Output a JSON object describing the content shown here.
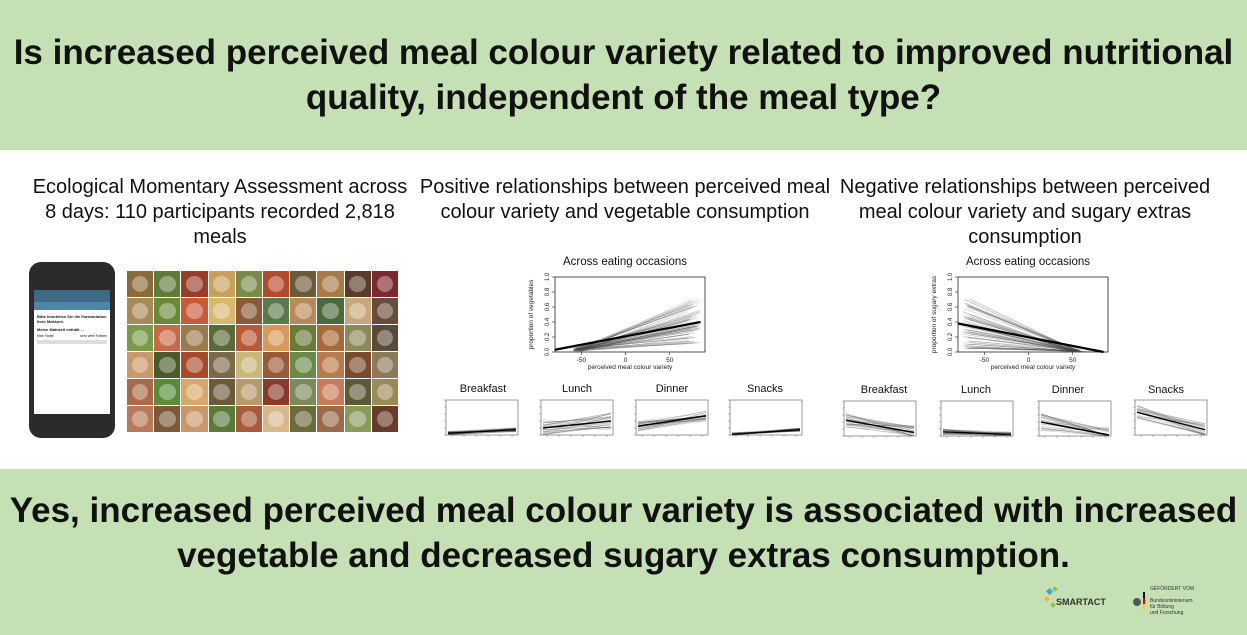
{
  "header": {
    "question": "Is increased perceived meal colour variety related to improved nutritional quality, independent of the meal type?"
  },
  "columns": {
    "ema": {
      "title": "Ecological Momentary Assessment across 8 days: 110 participants recorded 2,818 meals"
    },
    "vegetables": {
      "title": "Positive relationships between perceived meal colour variety and vegetable consumption"
    },
    "sugary": {
      "title": "Negative relationships between perceived meal colour variety and sugary extras consumption"
    }
  },
  "phone": {
    "line1": "Bitte beurteilen Sie die Farbvariation",
    "line2": "Ihrer Mahlzeit.",
    "line3": "Meine Mahlzeit enthält ...",
    "scale_left": "eine Farbe",
    "scale_right": "sehr viele Farben"
  },
  "chart_data": [
    {
      "type": "line",
      "title": "Across eating occasions",
      "xlabel": "perceived meal colour variety",
      "ylabel": "proportion of vegetables",
      "xticks": [
        "-50",
        "0",
        "50"
      ],
      "yticks": [
        "0.0",
        "0.2",
        "0.4",
        "0.6",
        "0.8",
        "1.0"
      ],
      "xlim": [
        -80,
        90
      ],
      "ylim": [
        0,
        1
      ],
      "series": [
        {
          "values": [
            [
              -80,
              0.03
            ],
            [
              85,
              0.4
            ]
          ]
        }
      ],
      "trend": "positive"
    },
    {
      "type": "line",
      "title": "Across eating occasions",
      "xlabel": "perceived meal colour variety",
      "ylabel": "proportion of sugary extras",
      "xticks": [
        "-50",
        "0",
        "50"
      ],
      "yticks": [
        "0.0",
        "0.2",
        "0.4",
        "0.6",
        "0.8",
        "1.0"
      ],
      "xlim": [
        -80,
        90
      ],
      "ylim": [
        0,
        1
      ],
      "series": [
        {
          "values": [
            [
              -80,
              0.38
            ],
            [
              85,
              0.0
            ]
          ]
        }
      ],
      "trend": "negative"
    }
  ],
  "mini_plots": {
    "vegetables": [
      {
        "label": "Breakfast",
        "start": 0.05,
        "end": 0.15,
        "spread": 0.06
      },
      {
        "label": "Lunch",
        "start": 0.2,
        "end": 0.4,
        "spread": 0.25
      },
      {
        "label": "Dinner",
        "start": 0.25,
        "end": 0.55,
        "spread": 0.15
      },
      {
        "label": "Snacks",
        "start": 0.02,
        "end": 0.15,
        "spread": 0.05
      }
    ],
    "sugary": [
      {
        "label": "Breakfast",
        "start": 0.45,
        "end": 0.1,
        "spread": 0.2
      },
      {
        "label": "Lunch",
        "start": 0.12,
        "end": 0.04,
        "spread": 0.08
      },
      {
        "label": "Dinner",
        "start": 0.4,
        "end": 0.03,
        "spread": 0.25
      },
      {
        "label": "Snacks",
        "start": 0.65,
        "end": 0.15,
        "spread": 0.2
      }
    ]
  },
  "footer": {
    "answer": "Yes, increased perceived meal colour variety is associated with increased vegetable and decreased sugary extras consumption."
  },
  "logos": {
    "smartact": "SMARTACT",
    "bmbf_funded": "GEFÖRDERT VOM",
    "bmbf_line1": "Bundesministerium",
    "bmbf_line2": "für Bildung",
    "bmbf_line3": "und Forschung"
  },
  "mosaic_colors": [
    "#8a6a3a",
    "#5f7a3a",
    "#9b3b2a",
    "#c7a25a",
    "#7a8a4a",
    "#b34a2a",
    "#6b5a3a",
    "#a87a4a",
    "#5a3a2a",
    "#7a2a2a",
    "#a88a5a",
    "#6a8a3a",
    "#c85a3a",
    "#d8b86a",
    "#8a5a3a",
    "#5a7a4a",
    "#b88a5a",
    "#4a6a3a",
    "#c8a87a",
    "#6a4a3a",
    "#7a9a4a",
    "#c86a4a",
    "#9a7a4a",
    "#5a6a3a",
    "#b85a3a",
    "#d89a5a",
    "#6a7a3a",
    "#a86a3a",
    "#8a8a5a",
    "#5a4a3a",
    "#c89a6a",
    "#4a5a2a",
    "#a84a2a",
    "#7a6a4a",
    "#c8b87a",
    "#9a5a3a",
    "#6a8a4a",
    "#b87a4a",
    "#7a4a2a",
    "#8a7a5a",
    "#a86a4a",
    "#5a8a3a",
    "#d8a86a",
    "#6a5a3a",
    "#b89a6a",
    "#8a3a2a",
    "#7a8a5a",
    "#c87a5a",
    "#5a5a3a",
    "#9a8a5a",
    "#b87a5a",
    "#7a5a3a",
    "#c8986a",
    "#5a7a3a",
    "#a85a3a",
    "#d8b88a",
    "#6a6a3a",
    "#9a6a4a",
    "#8a9a5a",
    "#6a3a2a"
  ],
  "colors": {
    "band": "#c5e0b4"
  }
}
